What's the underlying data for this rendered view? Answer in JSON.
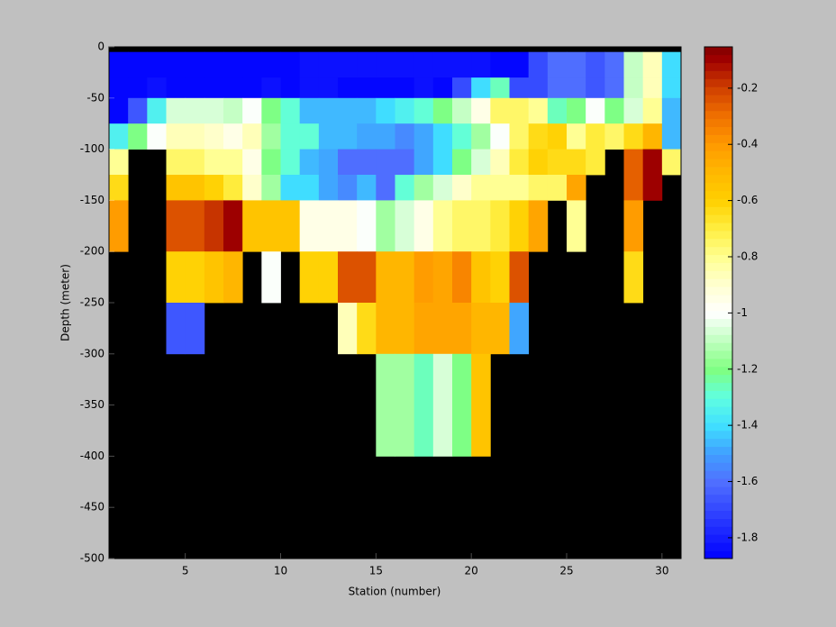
{
  "chart_data": {
    "type": "heatmap",
    "xlabel": "Station (number)",
    "ylabel": "Depth (meter)",
    "xlim": [
      1,
      31
    ],
    "ylim": [
      -500,
      0
    ],
    "xticks": [
      5,
      10,
      15,
      20,
      25,
      30
    ],
    "yticks": [
      0,
      -50,
      -100,
      -150,
      -200,
      -250,
      -300,
      -350,
      -400,
      -450,
      -500
    ],
    "x_edges": [
      1,
      2,
      3,
      4,
      5,
      6,
      7,
      8,
      9,
      10,
      11,
      12,
      13,
      14,
      15,
      16,
      17,
      18,
      19,
      20,
      21,
      22,
      23,
      24,
      25,
      26,
      27,
      28,
      29,
      30,
      31
    ],
    "y_edges": [
      0,
      -5,
      -30,
      -50,
      -75,
      -100,
      -125,
      -150,
      -200,
      -250,
      -300,
      -400,
      -500
    ],
    "missing_color": "#000000",
    "clim": [
      -1.874,
      -0.053
    ],
    "colorbar_ticks": [
      -0.2,
      -0.4,
      -0.6,
      -0.8,
      -1,
      -1.2,
      -1.4,
      -1.6,
      -1.8
    ],
    "colorscale": [
      [
        -1.874,
        "#0000ff"
      ],
      [
        -1.6,
        "#5070ff"
      ],
      [
        -1.5,
        "#40a0ff"
      ],
      [
        -1.4,
        "#40e0ff"
      ],
      [
        -1.3,
        "#60ffe0"
      ],
      [
        -1.2,
        "#80ff80"
      ],
      [
        -1.1,
        "#c0ffc0"
      ],
      [
        -1.0,
        "#ffffff"
      ],
      [
        -0.9,
        "#ffffd0"
      ],
      [
        -0.8,
        "#ffff90"
      ],
      [
        -0.7,
        "#ffee40"
      ],
      [
        -0.6,
        "#ffd000"
      ],
      [
        -0.5,
        "#ffb800"
      ],
      [
        -0.4,
        "#ff9900"
      ],
      [
        -0.3,
        "#f07000"
      ],
      [
        -0.2,
        "#d04000"
      ],
      [
        -0.1,
        "#a00000"
      ],
      [
        -0.053,
        "#800000"
      ]
    ],
    "z": [
      [
        null,
        null,
        null,
        null,
        null,
        null,
        null,
        null,
        null,
        null,
        null,
        null,
        null,
        null,
        null,
        null,
        null,
        null,
        null,
        null,
        null,
        null,
        null,
        null,
        null,
        null,
        null,
        null,
        null,
        null
      ],
      [
        -1.85,
        -1.85,
        -1.85,
        -1.85,
        -1.85,
        -1.85,
        -1.85,
        -1.85,
        -1.85,
        -1.85,
        -1.82,
        -1.82,
        -1.82,
        -1.82,
        -1.82,
        -1.82,
        -1.82,
        -1.82,
        -1.82,
        -1.82,
        -1.85,
        -1.85,
        -1.7,
        -1.6,
        -1.6,
        -1.65,
        -1.6,
        -1.1,
        -0.85,
        -1.4
      ],
      [
        -1.85,
        -1.85,
        -1.82,
        -1.85,
        -1.85,
        -1.85,
        -1.85,
        -1.85,
        -1.82,
        -1.85,
        -1.82,
        -1.82,
        -1.85,
        -1.87,
        -1.87,
        -1.85,
        -1.82,
        -1.87,
        -1.7,
        -1.4,
        -1.25,
        -1.7,
        -1.7,
        -1.6,
        -1.6,
        -1.65,
        -1.6,
        -1.1,
        -0.85,
        -1.4
      ],
      [
        -1.85,
        -1.65,
        -1.35,
        -1.05,
        -1.05,
        -1.05,
        -1.1,
        -1.0,
        -1.2,
        -1.3,
        -1.45,
        -1.45,
        -1.45,
        -1.45,
        -1.4,
        -1.35,
        -1.3,
        -1.2,
        -1.1,
        -0.95,
        -0.75,
        -0.75,
        -0.8,
        -1.25,
        -1.2,
        -1.0,
        -1.2,
        -1.05,
        -0.8,
        -1.45
      ],
      [
        -1.35,
        -1.2,
        -1.0,
        -0.85,
        -0.85,
        -0.9,
        -0.95,
        -0.85,
        -1.15,
        -1.3,
        -1.3,
        -1.45,
        -1.45,
        -1.5,
        -1.5,
        -1.55,
        -1.5,
        -1.4,
        -1.3,
        -1.15,
        -1.0,
        -0.75,
        -0.65,
        -0.6,
        -0.8,
        -0.7,
        -0.75,
        -0.65,
        -0.5,
        -1.45
      ],
      [
        -0.8,
        null,
        null,
        -0.75,
        -0.75,
        -0.8,
        -0.8,
        -0.95,
        -1.2,
        -1.3,
        -1.45,
        -1.5,
        -1.6,
        -1.6,
        -1.6,
        -1.6,
        -1.5,
        -1.4,
        -1.2,
        -1.05,
        -0.85,
        -0.7,
        -0.6,
        -0.65,
        -0.65,
        -0.7,
        null,
        -0.28,
        -0.1,
        -0.75
      ],
      [
        -0.65,
        null,
        null,
        -0.55,
        -0.55,
        -0.6,
        -0.7,
        -0.9,
        -1.15,
        -1.4,
        -1.4,
        -1.5,
        -1.55,
        -1.45,
        -1.6,
        -1.3,
        -1.15,
        -1.05,
        -0.9,
        -0.8,
        -0.8,
        -0.8,
        -0.75,
        -0.75,
        -0.45,
        null,
        null,
        -0.28,
        -0.1,
        null
      ],
      [
        -0.4,
        null,
        null,
        -0.25,
        -0.25,
        -0.18,
        -0.1,
        -0.55,
        -0.55,
        -0.55,
        -0.95,
        -0.95,
        -0.95,
        -1.0,
        -1.15,
        -1.05,
        -0.95,
        -0.8,
        -0.75,
        -0.75,
        -0.7,
        -0.6,
        -0.45,
        null,
        -0.8,
        null,
        null,
        -0.4,
        null,
        null
      ],
      [
        null,
        null,
        null,
        -0.6,
        -0.6,
        -0.55,
        -0.5,
        null,
        -1.0,
        null,
        -0.6,
        -0.6,
        -0.25,
        -0.25,
        -0.5,
        -0.5,
        -0.4,
        -0.45,
        -0.35,
        -0.55,
        -0.6,
        -0.25,
        null,
        null,
        null,
        null,
        null,
        -0.65,
        null,
        null
      ],
      [
        null,
        null,
        null,
        -1.65,
        -1.65,
        null,
        null,
        null,
        null,
        null,
        null,
        null,
        -0.85,
        -0.65,
        -0.5,
        -0.5,
        -0.45,
        -0.45,
        -0.45,
        -0.5,
        -0.5,
        -1.5,
        null,
        null,
        null,
        null,
        null,
        null,
        null,
        null
      ],
      [
        null,
        null,
        null,
        null,
        null,
        null,
        null,
        null,
        null,
        null,
        null,
        null,
        null,
        null,
        -1.15,
        -1.15,
        -1.25,
        -1.05,
        -1.2,
        -0.55,
        null,
        null,
        null,
        null,
        null,
        null,
        null,
        null,
        null,
        null
      ],
      [
        null,
        null,
        null,
        null,
        null,
        null,
        null,
        null,
        null,
        null,
        null,
        null,
        null,
        null,
        null,
        null,
        null,
        null,
        null,
        null,
        null,
        null,
        null,
        null,
        null,
        null,
        null,
        null,
        null,
        null
      ]
    ]
  }
}
